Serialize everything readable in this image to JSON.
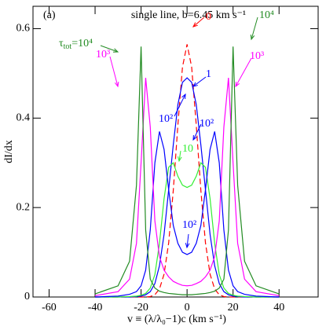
{
  "chart_data": {
    "type": "line",
    "xlabel": "v ≡ (λ/λ₀−1)c (km s⁻¹)",
    "ylabel": "dI/dx",
    "x": [
      -40,
      -30,
      -25,
      -22,
      -20,
      -18,
      -16,
      -14,
      -12,
      -10,
      -8,
      -6,
      -4,
      -2,
      0,
      2,
      4,
      6,
      8,
      10,
      12,
      14,
      16,
      18,
      20,
      22,
      25,
      30,
      40
    ],
    "series": [
      {
        "name": "0",
        "color": "#ff0000",
        "dashed": true,
        "values": [
          0,
          0,
          0,
          0,
          0,
          0,
          0.001,
          0.005,
          0.018,
          0.051,
          0.121,
          0.238,
          0.384,
          0.514,
          0.565,
          0.514,
          0.384,
          0.238,
          0.121,
          0.051,
          0.018,
          0.005,
          0.001,
          0,
          0,
          0,
          0,
          0,
          0
        ]
      },
      {
        "name": "1",
        "color": "#0000ff",
        "values": [
          0,
          0,
          0,
          0.001,
          0.002,
          0.005,
          0.012,
          0.03,
          0.07,
          0.14,
          0.24,
          0.34,
          0.43,
          0.48,
          0.49,
          0.48,
          0.43,
          0.34,
          0.24,
          0.14,
          0.07,
          0.03,
          0.012,
          0.005,
          0.002,
          0.001,
          0,
          0,
          0
        ]
      },
      {
        "name": "10",
        "color": "#33ee33",
        "values": [
          0,
          0,
          0.001,
          0.002,
          0.004,
          0.008,
          0.02,
          0.05,
          0.12,
          0.22,
          0.29,
          0.3,
          0.27,
          0.25,
          0.245,
          0.25,
          0.27,
          0.3,
          0.29,
          0.22,
          0.12,
          0.05,
          0.02,
          0.008,
          0.004,
          0.002,
          0.001,
          0,
          0
        ]
      },
      {
        "name": "10²",
        "color": "#0000ff",
        "values": [
          0,
          0.002,
          0.006,
          0.012,
          0.025,
          0.06,
          0.15,
          0.3,
          0.37,
          0.33,
          0.24,
          0.16,
          0.12,
          0.1,
          0.095,
          0.1,
          0.12,
          0.16,
          0.24,
          0.33,
          0.37,
          0.3,
          0.15,
          0.06,
          0.025,
          0.012,
          0.006,
          0.002,
          0
        ]
      },
      {
        "name": "10³",
        "color": "#ff00ff",
        "values": [
          0.003,
          0.012,
          0.04,
          0.12,
          0.3,
          0.49,
          0.38,
          0.17,
          0.09,
          0.06,
          0.045,
          0.035,
          0.03,
          0.026,
          0.025,
          0.026,
          0.03,
          0.035,
          0.045,
          0.06,
          0.09,
          0.17,
          0.38,
          0.49,
          0.3,
          0.12,
          0.04,
          0.012,
          0.003
        ]
      },
      {
        "name": "10⁴",
        "color": "#228b22",
        "values": [
          0.007,
          0.025,
          0.08,
          0.25,
          0.56,
          0.15,
          0.04,
          0.02,
          0.013,
          0.01,
          0.008,
          0.007,
          0.006,
          0.005,
          0.005,
          0.005,
          0.006,
          0.007,
          0.008,
          0.01,
          0.013,
          0.02,
          0.04,
          0.15,
          0.56,
          0.25,
          0.08,
          0.025,
          0.007
        ]
      }
    ],
    "annotations": [
      {
        "text": "(a)",
        "color": "#000000"
      },
      {
        "text": "single line, b=6.45 km s⁻¹",
        "color": "#000000"
      },
      {
        "text": "0",
        "color": "#ff0000"
      },
      {
        "text": "10⁴",
        "color": "#228b22"
      },
      {
        "parts": [
          "τ",
          "tot",
          "=10⁴"
        ],
        "color": "#228b22"
      },
      {
        "text": "10³",
        "color": "#ff00ff"
      },
      {
        "text": "10³",
        "color": "#ff00ff"
      },
      {
        "text": "1",
        "color": "#0000ff"
      },
      {
        "text": "10²",
        "color": "#0000ff"
      },
      {
        "text": "10²",
        "color": "#0000ff"
      },
      {
        "text": "10",
        "color": "#33ee33"
      },
      {
        "text": "10²",
        "color": "#0000ff"
      }
    ],
    "xlim": [
      -67,
      57
    ],
    "xticks": [
      -60,
      -40,
      -20,
      0,
      20,
      40
    ],
    "ylim": [
      0,
      0.65
    ],
    "yticks": [
      0,
      0.2,
      0.4,
      0.6
    ]
  }
}
